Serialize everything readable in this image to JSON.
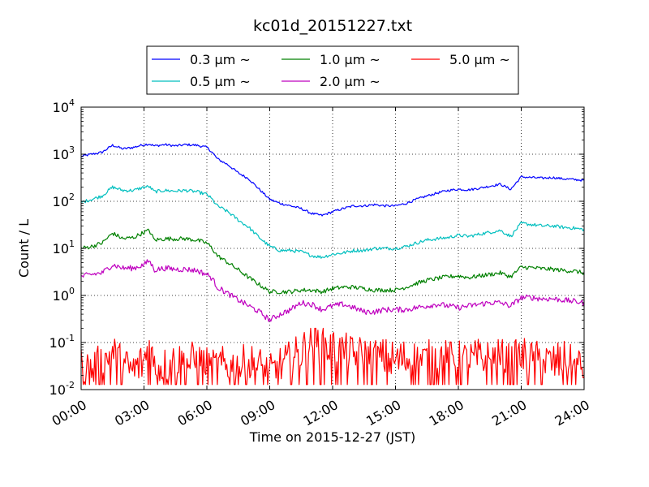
{
  "chart_data": {
    "type": "line",
    "title": "kc01d_20151227.txt",
    "xlabel": "Time on 2015-12-27 (JST)",
    "ylabel": "Count / L",
    "x_unit": "hours",
    "xlim": [
      0,
      24
    ],
    "ylim": [
      0.01,
      10000
    ],
    "y_scale": "log",
    "grid": true,
    "legend": "top-center, 3 columns",
    "x_ticks": [
      "00:00",
      "03:00",
      "06:00",
      "09:00",
      "12:00",
      "15:00",
      "18:00",
      "21:00",
      "24:00"
    ],
    "y_ticks": [
      {
        "base": "10",
        "exp": "-2"
      },
      {
        "base": "10",
        "exp": "-1"
      },
      {
        "base": "10",
        "exp": "0"
      },
      {
        "base": "10",
        "exp": "1"
      },
      {
        "base": "10",
        "exp": "2"
      },
      {
        "base": "10",
        "exp": "3"
      },
      {
        "base": "10",
        "exp": "4"
      }
    ],
    "x": [
      0,
      0.5,
      1,
      1.5,
      2,
      2.5,
      3,
      3.25,
      3.5,
      4,
      4.5,
      5,
      5.5,
      6,
      6.25,
      6.5,
      7,
      7.5,
      8,
      8.5,
      9,
      9.5,
      10,
      10.5,
      11,
      11.5,
      12,
      12.5,
      13,
      13.5,
      14,
      14.5,
      15,
      15.5,
      16,
      16.5,
      17,
      17.5,
      18,
      18.5,
      19,
      19.5,
      20,
      20.5,
      21,
      21.5,
      22,
      22.5,
      23,
      23.5,
      24
    ],
    "series": [
      {
        "name": "0.3 μm ~",
        "color": "#0000ff",
        "values": [
          900,
          1000,
          1100,
          1550,
          1300,
          1400,
          1600,
          1650,
          1500,
          1600,
          1500,
          1600,
          1550,
          1400,
          1100,
          800,
          600,
          400,
          300,
          180,
          110,
          90,
          80,
          70,
          55,
          50,
          60,
          70,
          80,
          80,
          85,
          80,
          80,
          90,
          110,
          130,
          150,
          170,
          180,
          175,
          190,
          210,
          230,
          180,
          330,
          320,
          310,
          320,
          300,
          290,
          280
        ]
      },
      {
        "name": "0.5 μm ~",
        "color": "#00bfbf",
        "values": [
          95,
          110,
          130,
          200,
          170,
          170,
          200,
          205,
          160,
          170,
          165,
          170,
          160,
          140,
          110,
          80,
          60,
          40,
          28,
          17,
          11,
          9,
          9,
          8.5,
          7,
          6.5,
          7.5,
          8,
          9,
          9,
          10,
          10,
          10,
          11,
          13,
          15,
          16,
          17,
          19,
          18,
          20,
          22,
          24,
          18,
          34,
          32,
          30,
          30,
          28,
          27,
          25
        ]
      },
      {
        "name": "1.0 μm ~",
        "color": "#008000",
        "values": [
          10,
          11,
          13,
          21,
          16,
          17,
          22,
          24,
          15,
          16,
          16,
          16,
          15,
          13,
          10,
          7,
          5,
          3.5,
          2.4,
          1.7,
          1.2,
          1.2,
          1.2,
          1.3,
          1.3,
          1.2,
          1.4,
          1.5,
          1.5,
          1.4,
          1.3,
          1.3,
          1.3,
          1.5,
          1.8,
          2.1,
          2.3,
          2.5,
          2.6,
          2.4,
          2.6,
          2.8,
          3.0,
          2.5,
          4.0,
          3.9,
          3.7,
          3.6,
          3.4,
          3.3,
          3.0
        ]
      },
      {
        "name": "2.0 μm ~",
        "color": "#bf00bf",
        "values": [
          2.5,
          2.8,
          3.0,
          4.5,
          3.8,
          3.8,
          4.5,
          5.5,
          3.5,
          3.8,
          3.6,
          3.6,
          3.4,
          2.8,
          2.3,
          1.5,
          1.1,
          0.8,
          0.6,
          0.45,
          0.3,
          0.4,
          0.5,
          0.7,
          0.65,
          0.5,
          0.6,
          0.65,
          0.55,
          0.45,
          0.45,
          0.5,
          0.5,
          0.5,
          0.55,
          0.6,
          0.65,
          0.6,
          0.55,
          0.6,
          0.65,
          0.7,
          0.7,
          0.6,
          0.9,
          0.9,
          0.85,
          0.85,
          0.8,
          0.75,
          0.7
        ]
      },
      {
        "name": "5.0 μm ~",
        "color": "#ff0000",
        "values": [
          0.03,
          0.025,
          0.035,
          0.06,
          0.03,
          0.025,
          0.04,
          0.09,
          0.03,
          0.03,
          0.04,
          0.035,
          0.04,
          0.03,
          0.025,
          0.03,
          0.03,
          0.03,
          0.035,
          0.03,
          0.02,
          0.03,
          0.04,
          0.06,
          0.1,
          0.09,
          0.07,
          0.06,
          0.05,
          0.05,
          0.045,
          0.045,
          0.04,
          0.045,
          0.04,
          0.04,
          0.05,
          0.04,
          0.04,
          0.04,
          0.045,
          0.04,
          0.045,
          0.035,
          0.05,
          0.04,
          0.04,
          0.035,
          0.04,
          0.03,
          0.03
        ]
      }
    ]
  }
}
